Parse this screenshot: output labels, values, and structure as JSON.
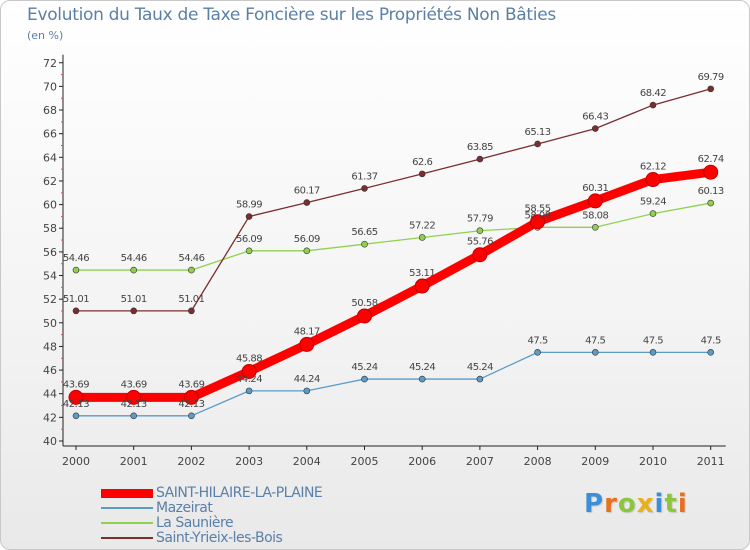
{
  "title": "Evolution du Taux de Taxe Foncière sur les Propriétés Non Bâties",
  "unit_label": "(en %)",
  "brand": "Proxiti",
  "chart_data": {
    "type": "line",
    "title": "Evolution du Taux de Taxe Foncière sur les Propriétés Non Bâties",
    "ylabel": "(en %)",
    "xlabel": "",
    "categories": [
      "2000",
      "2001",
      "2002",
      "2003",
      "2004",
      "2005",
      "2006",
      "2007",
      "2008",
      "2009",
      "2010",
      "2011"
    ],
    "ylim": [
      40,
      72
    ],
    "yticks": [
      40,
      42,
      44,
      46,
      48,
      50,
      52,
      54,
      56,
      58,
      60,
      62,
      64,
      66,
      68,
      70,
      72
    ],
    "grid": false,
    "legend_position": "bottom-left",
    "series": [
      {
        "name": "SAINT-HILAIRE-LA-PLAINE",
        "color": "#ff0000",
        "emphasis": true,
        "values": [
          43.69,
          43.69,
          43.69,
          45.88,
          48.17,
          50.58,
          53.11,
          55.76,
          58.55,
          60.31,
          62.12,
          62.74
        ],
        "labels": [
          "43.69",
          "43.69",
          "43.69",
          "45.88",
          "48.17",
          "50.58",
          "53.11",
          "55.76",
          "58.55",
          "60.31",
          "62.12",
          "62.74"
        ]
      },
      {
        "name": "Mazeirat",
        "color": "#5b9bc8",
        "emphasis": false,
        "values": [
          42.13,
          42.13,
          42.13,
          44.24,
          44.24,
          45.24,
          45.24,
          45.24,
          47.5,
          47.5,
          47.5,
          47.5
        ],
        "labels": [
          "42.13",
          "42.13",
          "42.13",
          "44.24",
          "44.24",
          "45.24",
          "45.24",
          "45.24",
          "47.5",
          "47.5",
          "47.5",
          "47.5"
        ]
      },
      {
        "name": "La Saunière",
        "color": "#8fd14f",
        "emphasis": false,
        "values": [
          54.46,
          54.46,
          54.46,
          56.09,
          56.09,
          56.65,
          57.22,
          57.79,
          58.08,
          58.08,
          59.24,
          60.13
        ],
        "labels": [
          "54.46",
          "54.46",
          "54.46",
          "56.09",
          "56.09",
          "56.65",
          "57.22",
          "57.79",
          "58.08",
          "58.08",
          "59.24",
          "60.13"
        ]
      },
      {
        "name": "Saint-Yrieix-les-Bois",
        "color": "#7a2e2e",
        "emphasis": false,
        "values": [
          51.01,
          51.01,
          51.01,
          58.99,
          60.17,
          61.37,
          62.6,
          63.85,
          65.13,
          66.43,
          68.42,
          69.79
        ],
        "labels": [
          "51.01",
          "51.01",
          "51.01",
          "58.99",
          "60.17",
          "61.37",
          "62.6",
          "63.85",
          "65.13",
          "66.43",
          "68.42",
          "69.79"
        ]
      }
    ]
  }
}
